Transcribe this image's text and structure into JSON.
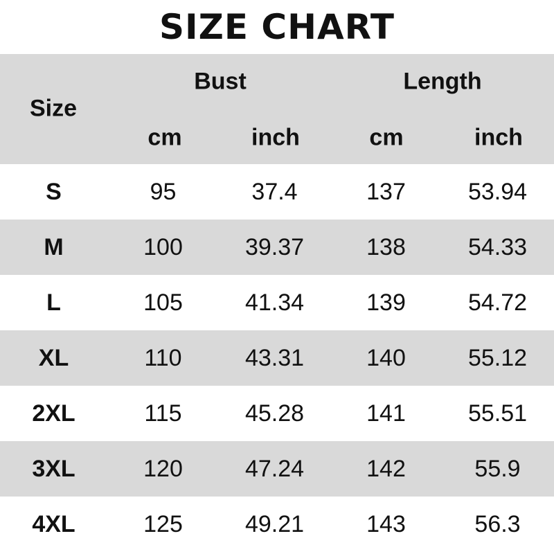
{
  "title": "SIZE CHART",
  "header": {
    "size": "Size",
    "bust": "Bust",
    "length": "Length",
    "units": [
      "cm",
      "inch",
      "cm",
      "inch"
    ]
  },
  "rows": [
    {
      "size": "S",
      "bust_cm": "95",
      "bust_inch": "37.4",
      "length_cm": "137",
      "length_inch": "53.94"
    },
    {
      "size": "M",
      "bust_cm": "100",
      "bust_inch": "39.37",
      "length_cm": "138",
      "length_inch": "54.33"
    },
    {
      "size": "L",
      "bust_cm": "105",
      "bust_inch": "41.34",
      "length_cm": "139",
      "length_inch": "54.72"
    },
    {
      "size": "XL",
      "bust_cm": "110",
      "bust_inch": "43.31",
      "length_cm": "140",
      "length_inch": "55.12"
    },
    {
      "size": "2XL",
      "bust_cm": "115",
      "bust_inch": "45.28",
      "length_cm": "141",
      "length_inch": "55.51"
    },
    {
      "size": "3XL",
      "bust_cm": "120",
      "bust_inch": "47.24",
      "length_cm": "142",
      "length_inch": "55.9"
    },
    {
      "size": "4XL",
      "bust_cm": "125",
      "bust_inch": "49.21",
      "length_cm": "143",
      "length_inch": "56.3"
    }
  ],
  "colors": {
    "stripe": "#d9d9d9",
    "background": "#ffffff",
    "text": "#111111"
  }
}
